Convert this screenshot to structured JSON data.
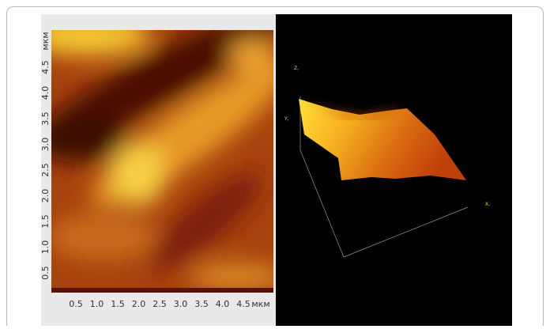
{
  "left_panel": {
    "x_ticks": [
      "0.5",
      "1.0",
      "1.5",
      "2.0",
      "2.5",
      "3.0",
      "3.5",
      "4.0",
      "4.5"
    ],
    "x_unit": "мкм",
    "y_ticks": [
      "0.5",
      "1.0",
      "1.5",
      "2.0",
      "2.5",
      "3.0",
      "3.5",
      "4.0",
      "4.5"
    ],
    "y_unit": "мкм"
  },
  "right_panel": {
    "axis_labels": [
      "Z,",
      "Y,",
      "X,"
    ]
  }
}
